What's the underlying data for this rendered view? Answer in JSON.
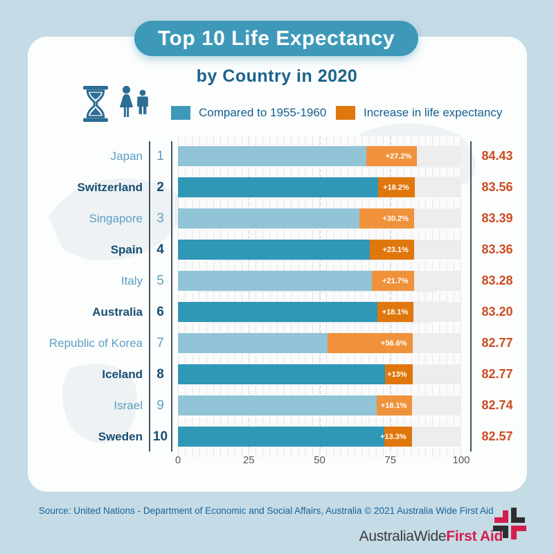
{
  "header": {
    "title": "Top 10 Life Expectancy",
    "subtitle": "by Country in 2020"
  },
  "legend": [
    {
      "label": "Compared to 1955-1960",
      "color": "#3e99b8"
    },
    {
      "label": "Increase in life expectancy",
      "color": "#e0770d"
    }
  ],
  "icons": [
    "hourglass-icon",
    "woman-icon",
    "man-icon"
  ],
  "colors": {
    "background": "#c5dbe6",
    "card": "#fcfdfd",
    "banner": "#3e99b8",
    "bar_light_blue": "#92c4d8",
    "bar_dark_teal": "#3097b6",
    "increase_light_orange": "#f0923c",
    "increase_dark_orange": "#e0770d",
    "value_text": "#cc4b22",
    "label_light": "#5c9fc2",
    "label_dark": "#174e73",
    "legend_text": "#14608f",
    "source_text": "#19639a",
    "brand_dark": "#3b3b3d",
    "brand_red": "#d31e4c"
  },
  "chart_data": {
    "type": "bar",
    "orientation": "horizontal",
    "title": "Top 10 Life Expectancy by Country in 2020",
    "xlim": [
      0,
      100
    ],
    "x_ticks": [
      0,
      25,
      50,
      75,
      100
    ],
    "gridlines_at": [
      25,
      50,
      75
    ],
    "legend_position": "top",
    "categories": [
      "Japan",
      "Switzerland",
      "Singapore",
      "Spain",
      "Italy",
      "Australia",
      "Republic of Korea",
      "Iceland",
      "Israel",
      "Sweden"
    ],
    "series": [
      {
        "name": "Compared to 1955-1960 (base life expectancy)",
        "values": [
          66.4,
          70.7,
          64.0,
          67.7,
          68.4,
          70.4,
          52.9,
          73.2,
          70.1,
          72.9
        ]
      },
      {
        "name": "Increase in life expectancy",
        "values": [
          18.0,
          12.9,
          19.4,
          15.7,
          14.9,
          12.8,
          29.9,
          9.6,
          12.7,
          9.7
        ]
      }
    ],
    "totals": [
      84.43,
      83.56,
      83.39,
      83.36,
      83.28,
      83.2,
      82.77,
      82.77,
      82.74,
      82.57
    ],
    "rows": [
      {
        "rank": "1",
        "country": "Japan",
        "variant": "light",
        "base": 66.4,
        "total": 84.43,
        "increase_label": "+27.2%",
        "value_label": "84.43"
      },
      {
        "rank": "2",
        "country": "Switzerland",
        "variant": "dark",
        "base": 70.7,
        "total": 83.56,
        "increase_label": "+18.2%",
        "value_label": "83.56"
      },
      {
        "rank": "3",
        "country": "Singapore",
        "variant": "light",
        "base": 64.0,
        "total": 83.39,
        "increase_label": "+30.2%",
        "value_label": "83.39"
      },
      {
        "rank": "4",
        "country": "Spain",
        "variant": "dark",
        "base": 67.7,
        "total": 83.36,
        "increase_label": "+23.1%",
        "value_label": "83.36"
      },
      {
        "rank": "5",
        "country": "Italy",
        "variant": "light",
        "base": 68.4,
        "total": 83.28,
        "increase_label": "+21.7%",
        "value_label": "83.28"
      },
      {
        "rank": "6",
        "country": "Australia",
        "variant": "dark",
        "base": 70.4,
        "total": 83.2,
        "increase_label": "+18.1%",
        "value_label": "83.20"
      },
      {
        "rank": "7",
        "country": "Republic of Korea",
        "variant": "light",
        "base": 52.9,
        "total": 82.77,
        "increase_label": "+56.6%",
        "value_label": "82.77"
      },
      {
        "rank": "8",
        "country": "Iceland",
        "variant": "dark",
        "base": 73.2,
        "total": 82.77,
        "increase_label": "+13%",
        "value_label": "82.77"
      },
      {
        "rank": "9",
        "country": "Israel",
        "variant": "light",
        "base": 70.1,
        "total": 82.74,
        "increase_label": "+18.1%",
        "value_label": "82.74"
      },
      {
        "rank": "10",
        "country": "Sweden",
        "variant": "dark",
        "base": 72.9,
        "total": 82.57,
        "increase_label": "+13.3%",
        "value_label": "82.57"
      }
    ]
  },
  "footer": {
    "source": "Source: United Nations - Department of Economic and Social Affairs, Australia © 2021 Australia Wide First Aid",
    "brand_part1": "AustraliaWide",
    "brand_part2": "First Aid"
  }
}
